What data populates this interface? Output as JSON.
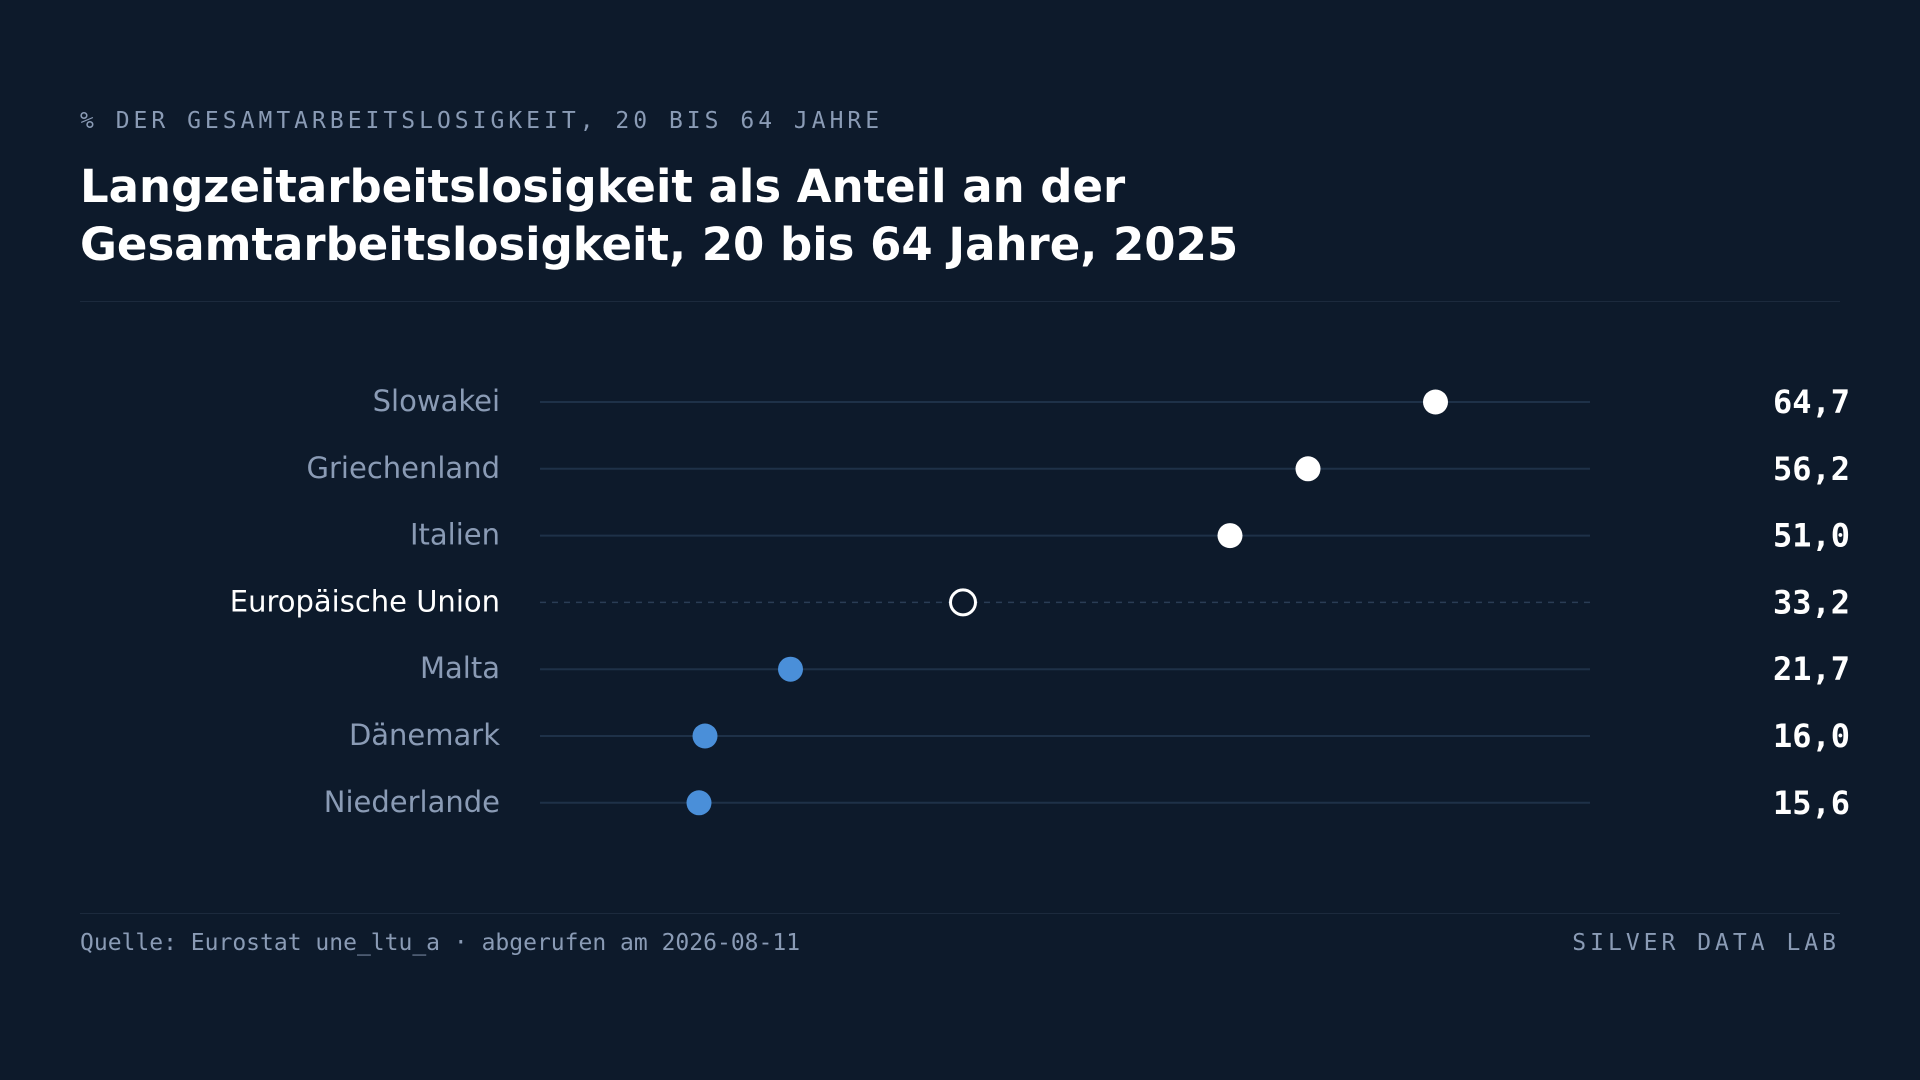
{
  "header": {
    "eyebrow": "% DER GESAMTARBEITSLOSIGKEIT, 20 BIS 64 JAHRE",
    "title": "Langzeitarbeitslosigkeit als Anteil an der Gesamtarbeitslosigkeit, 20 bis 64 Jahre, 2025"
  },
  "footer": {
    "source": "Quelle: Eurostat une_ltu_a · abgerufen am 2026-08-11",
    "brand": "SILVER DATA LAB"
  },
  "colors": {
    "background": "#0d1a2b",
    "high": "#ffffff",
    "low": "#4a8fd9",
    "reference": "#ffffff",
    "track": "#1e3148",
    "label": "#8a9bb5",
    "reference_label": "#ffffff",
    "value": "#ffffff"
  },
  "chart_data": {
    "type": "dot",
    "title": "Langzeitarbeitslosigkeit als Anteil an der Gesamtarbeitslosigkeit, 20 bis 64 Jahre, 2025",
    "xlim": [
      5,
      75
    ],
    "grid": false,
    "legend": "none",
    "rows": [
      {
        "label": "Slowakei",
        "value": 64.7,
        "value_label": "64,7",
        "group": "high"
      },
      {
        "label": "Griechenland",
        "value": 56.2,
        "value_label": "56,2",
        "group": "high"
      },
      {
        "label": "Italien",
        "value": 51.0,
        "value_label": "51,0",
        "group": "high"
      },
      {
        "label": "Europäische Union",
        "value": 33.2,
        "value_label": "33,2",
        "group": "reference"
      },
      {
        "label": "Malta",
        "value": 21.7,
        "value_label": "21,7",
        "group": "low"
      },
      {
        "label": "Dänemark",
        "value": 16.0,
        "value_label": "16,0",
        "group": "low"
      },
      {
        "label": "Niederlande",
        "value": 15.6,
        "value_label": "15,6",
        "group": "low"
      }
    ]
  }
}
